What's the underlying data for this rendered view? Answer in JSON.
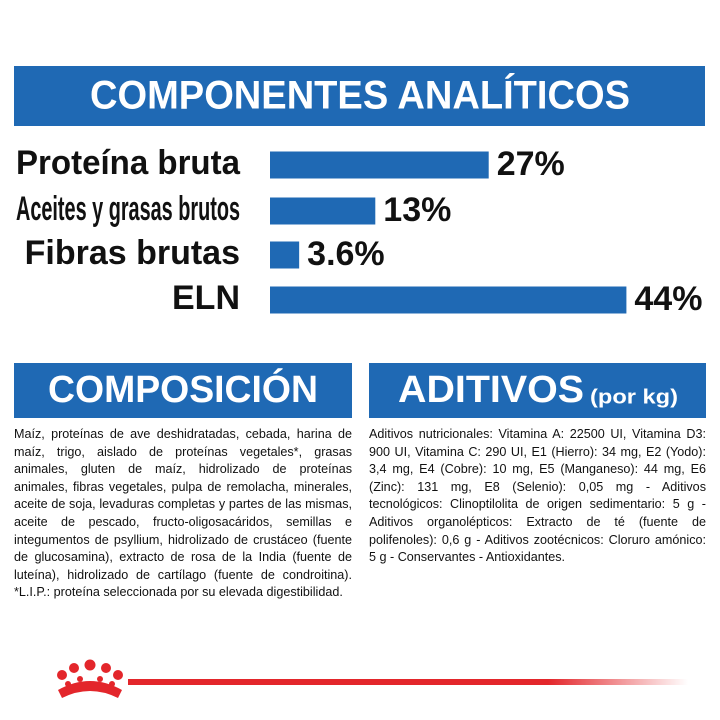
{
  "chart_data": {
    "type": "bar",
    "orientation": "horizontal",
    "title": "COMPONENTES ANALÍTICOS",
    "categories": [
      "Proteína bruta",
      "Aceites y grasas brutos",
      "Fibras brutas",
      "ELN"
    ],
    "values": [
      27,
      13,
      3.6,
      44
    ],
    "value_labels": [
      "27%",
      "13%",
      "3.6%",
      "44%"
    ],
    "color": "#1f69b4"
  },
  "composition": {
    "title": "COMPOSICIÓN",
    "text": "Maíz, proteínas de ave deshidratadas, cebada, harina de maíz, trigo, aislado de proteínas vegetales*, grasas animales, gluten de maíz, hidrolizado de proteínas animales, fibras vegetales, pulpa de remolacha, minerales, aceite de soja, levaduras completas y partes de las mismas, aceite de pescado, fructo-oligosacáridos, semillas e integumentos de psyllium, hidrolizado de crustáceo (fuente de glucosamina), extracto de rosa de la India (fuente de luteína), hidrolizado de cartílago (fuente de condroitina). *L.I.P.: proteína seleccionada por su elevada digestibilidad."
  },
  "additives": {
    "title": "ADITIVOS",
    "subtitle": "(por kg)",
    "text": "Aditivos nutricionales: Vitamina A: 22500 UI, Vitamina D3: 900 UI, Vitamina C: 290 UI, E1 (Hierro): 34 mg, E2 (Yodo): 3,4 mg, E4 (Cobre): 10 mg, E5 (Manganeso): 44 mg, E6 (Zinc): 131 mg, E8 (Selenio): 0,05 mg - Aditivos tecnológicos: Clinoptilolita de origen sedimentario: 5 g - Aditivos organolépticos: Extracto de té (fuente de polifenoles): 0,6 g - Aditivos zootécnicos: Cloruro amónico: 5 g - Conservantes - Antioxidantes."
  }
}
